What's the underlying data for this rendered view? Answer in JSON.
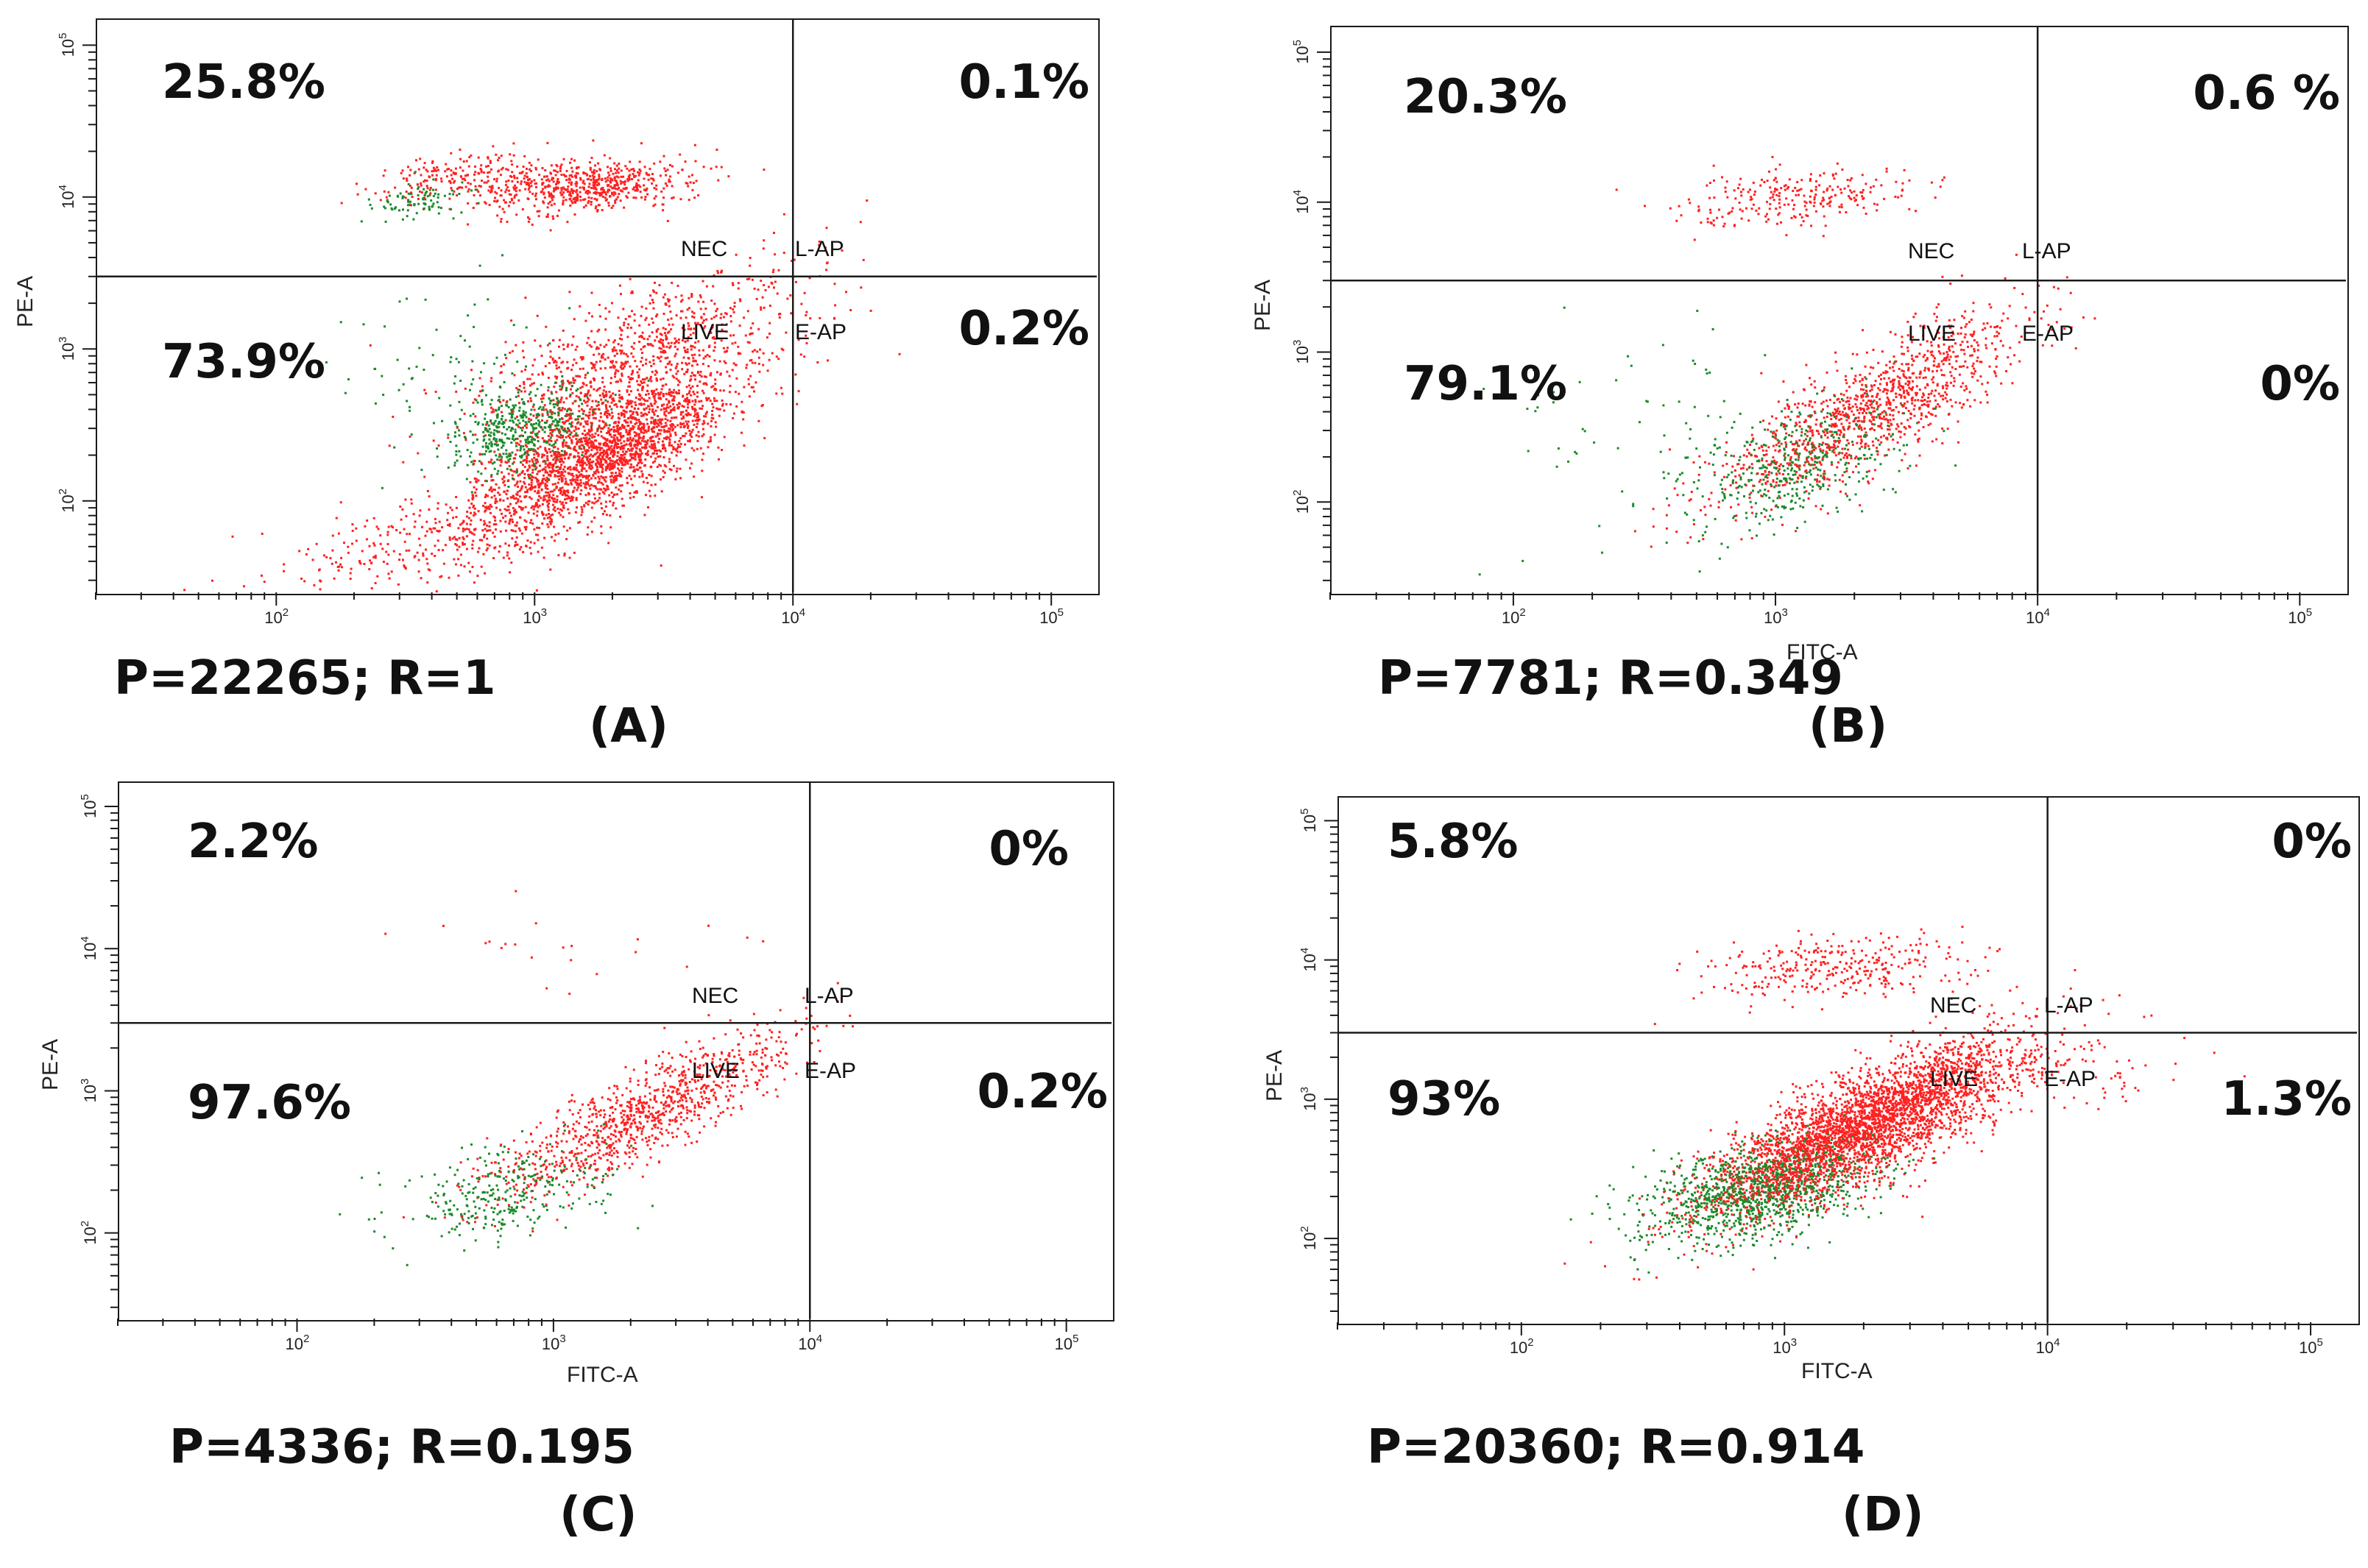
{
  "figure": {
    "x_axis_label": "FITC-A",
    "y_axis_label": "PE-A",
    "tick_labels": [
      "10",
      "2",
      "3",
      "4",
      "5"
    ],
    "quadrant_names": {
      "ul": "NEC",
      "ur": "L-AP",
      "ll": "LIVE",
      "lr": "E-AP"
    },
    "colors": {
      "red": "#ff2020",
      "green": "#1a8a2a",
      "axis": "#1a1a1a"
    }
  },
  "chart_data": [
    {
      "type": "scatter",
      "panel": "(A)",
      "xlabel": "FITC-A",
      "ylabel": "PE-A",
      "x_scale": "log",
      "y_scale": "log",
      "xlim": [
        20,
        150000
      ],
      "ylim": [
        25,
        150000
      ],
      "quadrant_gate": {
        "x": 10000,
        "y": 3000
      },
      "quadrants": {
        "ul": "25.8%",
        "ur": "0.1%",
        "ll": "73.9%",
        "lr": "0.2%"
      },
      "stats": "P=22265; R=1",
      "show_x_label": false,
      "clusters": [
        {
          "color": "red",
          "cx": 1800,
          "cy": 210,
          "sx": 0.25,
          "sy": 0.27,
          "rho": 0.75,
          "n": 2200
        },
        {
          "color": "red",
          "cx": 2400,
          "cy": 900,
          "sx": 0.33,
          "sy": 0.3,
          "rho": 0.7,
          "n": 900
        },
        {
          "color": "red",
          "cx": 1500,
          "cy": 12000,
          "sx": 0.22,
          "sy": 0.09,
          "rho": 0.2,
          "n": 650
        },
        {
          "color": "red",
          "cx": 500,
          "cy": 14000,
          "sx": 0.15,
          "sy": 0.08,
          "rho": 0.4,
          "n": 160
        },
        {
          "color": "red",
          "cx": 350,
          "cy": 50,
          "sx": 0.35,
          "sy": 0.18,
          "rho": 0.4,
          "n": 250
        },
        {
          "color": "green",
          "cx": 900,
          "cy": 300,
          "sx": 0.14,
          "sy": 0.14,
          "rho": 0.3,
          "n": 480
        },
        {
          "color": "green",
          "cx": 360,
          "cy": 9500,
          "sx": 0.1,
          "sy": 0.06,
          "rho": 0.3,
          "n": 90
        },
        {
          "color": "green",
          "cx": 450,
          "cy": 700,
          "sx": 0.2,
          "sy": 0.3,
          "rho": 0.2,
          "n": 70
        }
      ]
    },
    {
      "type": "scatter",
      "panel": "(B)",
      "xlabel": "FITC-A",
      "ylabel": "PE-A",
      "x_scale": "log",
      "y_scale": "log",
      "xlim": [
        20,
        150000
      ],
      "ylim": [
        25,
        150000
      ],
      "quadrant_gate": {
        "x": 10000,
        "y": 3000
      },
      "quadrants": {
        "ul": "20.3%",
        "ur": "0.6 %",
        "ll": "79.1%",
        "lr": "0%"
      },
      "stats": "P=7781; R=0.349",
      "show_x_label": true,
      "clusters": [
        {
          "color": "red",
          "cx": 2200,
          "cy": 400,
          "sx": 0.3,
          "sy": 0.32,
          "rho": 0.82,
          "n": 1150
        },
        {
          "color": "red",
          "cx": 1200,
          "cy": 11000,
          "sx": 0.22,
          "sy": 0.09,
          "rho": 0.3,
          "n": 260
        },
        {
          "color": "green",
          "cx": 1200,
          "cy": 180,
          "sx": 0.2,
          "sy": 0.22,
          "rho": 0.4,
          "n": 430
        },
        {
          "color": "green",
          "cx": 300,
          "cy": 300,
          "sx": 0.35,
          "sy": 0.4,
          "rho": 0.2,
          "n": 60
        }
      ]
    },
    {
      "type": "scatter",
      "panel": "(C)",
      "xlabel": "FITC-A",
      "ylabel": "PE-A",
      "x_scale": "log",
      "y_scale": "log",
      "xlim": [
        20,
        150000
      ],
      "ylim": [
        25,
        150000
      ],
      "quadrant_gate": {
        "x": 10000,
        "y": 3000
      },
      "quadrants": {
        "ul": "2.2%",
        "ur": "0%",
        "ll": "97.6%",
        "lr": "0.2%"
      },
      "stats": "P=4336; R=0.195",
      "show_x_label": true,
      "clusters": [
        {
          "color": "red",
          "cx": 2200,
          "cy": 700,
          "sx": 0.3,
          "sy": 0.3,
          "rho": 0.85,
          "n": 1000
        },
        {
          "color": "green",
          "cx": 650,
          "cy": 190,
          "sx": 0.2,
          "sy": 0.17,
          "rho": 0.3,
          "n": 300
        },
        {
          "color": "red",
          "cx": 900,
          "cy": 9000,
          "sx": 0.35,
          "sy": 0.15,
          "rho": 0.0,
          "n": 22
        }
      ]
    },
    {
      "type": "scatter",
      "panel": "(D)",
      "xlabel": "FITC-A",
      "ylabel": "PE-A",
      "x_scale": "log",
      "y_scale": "log",
      "xlim": [
        20,
        150000
      ],
      "ylim": [
        25,
        150000
      ],
      "quadrant_gate": {
        "x": 10000,
        "y": 3000
      },
      "quadrants": {
        "ul": "5.8%",
        "ur": "0%",
        "ll": "93%",
        "lr": "1.3%"
      },
      "stats": "P=20360; R=0.914",
      "show_x_label": true,
      "clusters": [
        {
          "color": "red",
          "cx": 2000,
          "cy": 650,
          "sx": 0.3,
          "sy": 0.32,
          "rho": 0.8,
          "n": 3400
        },
        {
          "color": "red",
          "cx": 1600,
          "cy": 9000,
          "sx": 0.25,
          "sy": 0.12,
          "rho": 0.2,
          "n": 320
        },
        {
          "color": "green",
          "cx": 800,
          "cy": 220,
          "sx": 0.22,
          "sy": 0.18,
          "rho": 0.4,
          "n": 1100
        },
        {
          "color": "red",
          "cx": 9000,
          "cy": 1500,
          "sx": 0.3,
          "sy": 0.15,
          "rho": 0.3,
          "n": 120
        }
      ]
    }
  ]
}
